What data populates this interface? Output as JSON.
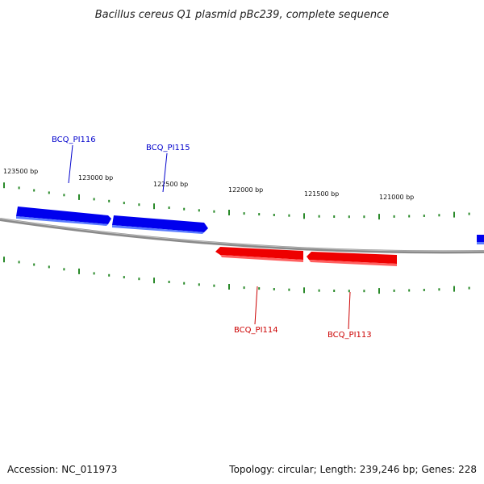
{
  "map": {
    "title": "Bacillus cereus Q1 plasmid pBc239, complete sequence",
    "accession_text": "Accession: NC_011973",
    "summary_text": "Topology: circular; Length: 239,246 bp; Genes: 228"
  },
  "colors": {
    "forward_strand": "#0000ee",
    "reverse_strand": "#ee0000",
    "backbone": "#8a8a8a",
    "tick": "#2a8a2a"
  },
  "tick_labels": [
    {
      "text": "123500 bp"
    },
    {
      "text": "123000 bp"
    },
    {
      "text": "122500 bp"
    },
    {
      "text": "122000 bp"
    },
    {
      "text": "121500 bp"
    },
    {
      "text": "121000 bp"
    }
  ],
  "genes": [
    {
      "label": "BCQ_PI116",
      "strand": "forward"
    },
    {
      "label": "BCQ_PI115",
      "strand": "forward"
    },
    {
      "label": "BCQ_PI114",
      "strand": "reverse"
    },
    {
      "label": "BCQ_PI113",
      "strand": "reverse"
    }
  ]
}
